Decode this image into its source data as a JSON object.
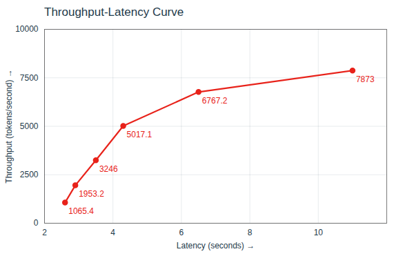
{
  "chart_data": {
    "type": "line",
    "title": "Throughput-Latency Curve",
    "x_label": "Latency (seconds)",
    "y_label": "Throughput (tokens/second)",
    "x": [
      2.6,
      2.9,
      3.5,
      4.3,
      6.5,
      11.0
    ],
    "values": [
      1065.4,
      1953.2,
      3246.0,
      5017.1,
      6767.2,
      7873.0
    ],
    "color": "#e8221a",
    "marker": "circle",
    "data_labels": true,
    "xlim": [
      2,
      12
    ],
    "ylim": [
      0,
      10000
    ],
    "xticks": [
      2,
      4,
      6,
      8,
      10
    ],
    "yticks": [
      0,
      2500,
      5000,
      7500,
      10000
    ],
    "grid": true
  }
}
